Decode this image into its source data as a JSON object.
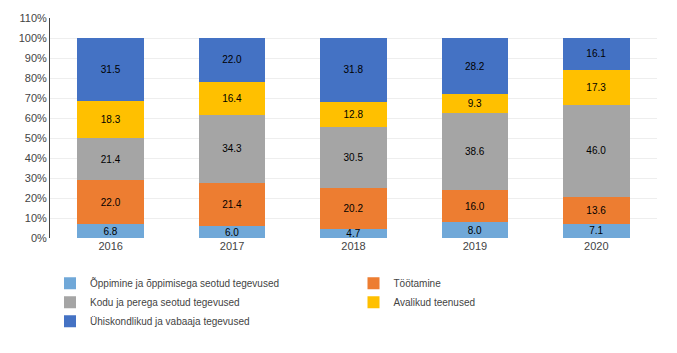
{
  "chart_data": {
    "type": "bar",
    "stacked": true,
    "categories": [
      "2016",
      "2017",
      "2018",
      "2019",
      "2020"
    ],
    "series": [
      {
        "name": "Õppimine ja õppimisega seotud tegevused",
        "color": "#70A8D8",
        "values": [
          6.8,
          6.0,
          4.7,
          8.0,
          7.1
        ],
        "value_labels": [
          "6.8",
          "6.0",
          "4.7",
          "8.0",
          "7.1"
        ]
      },
      {
        "name": "Töötamine",
        "color": "#ED7D31",
        "values": [
          22.0,
          21.4,
          20.2,
          16.0,
          13.6
        ],
        "value_labels": [
          "22.0",
          "21.4",
          "20.2",
          "16.0",
          "13.6"
        ]
      },
      {
        "name": "Kodu ja perega seotud tegevused",
        "color": "#A5A5A5",
        "values": [
          21.4,
          34.3,
          30.5,
          38.6,
          46.0
        ],
        "value_labels": [
          "21.4",
          "34.3",
          "30.5",
          "38.6",
          "46.0"
        ]
      },
      {
        "name": "Avalikud teenused",
        "color": "#FFC000",
        "values": [
          18.3,
          16.4,
          12.8,
          9.3,
          17.3
        ],
        "value_labels": [
          "18.3",
          "16.4",
          "12.8",
          "9.3",
          "17.3"
        ]
      },
      {
        "name": "Ühiskondlikud ja vabaaja tegevused",
        "color": "#4472C4",
        "values": [
          31.5,
          22.0,
          31.8,
          28.2,
          16.1
        ],
        "value_labels": [
          "31.5",
          "22.0",
          "31.8",
          "28.2",
          "16.1"
        ]
      }
    ],
    "ylim": [
      0,
      110
    ],
    "yticks": [
      {
        "value": 0,
        "label": "0%"
      },
      {
        "value": 10,
        "label": "10%"
      },
      {
        "value": 20,
        "label": "20%"
      },
      {
        "value": 30,
        "label": "30%"
      },
      {
        "value": 40,
        "label": "40%"
      },
      {
        "value": 50,
        "label": "50%"
      },
      {
        "value": 60,
        "label": "60%"
      },
      {
        "value": 70,
        "label": "70%"
      },
      {
        "value": 80,
        "label": "80%"
      },
      {
        "value": 90,
        "label": "90%"
      },
      {
        "value": 100,
        "label": "100%"
      },
      {
        "value": 110,
        "label": "110%"
      }
    ],
    "grid": true,
    "data_labels": true,
    "legend": "bottom"
  }
}
